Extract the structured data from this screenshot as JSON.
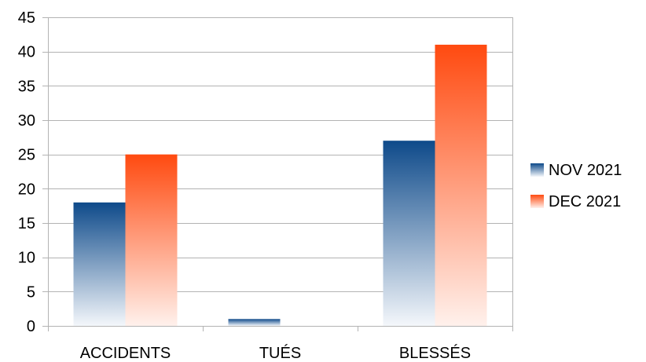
{
  "chart_data": {
    "type": "bar",
    "categories": [
      "ACCIDENTS",
      "TUÉS",
      "BLESSÉS"
    ],
    "series": [
      {
        "name": "NOV 2021",
        "values": [
          18,
          1,
          27
        ],
        "color_top": "#0e4a8a",
        "color_bottom": "#f4f7fb"
      },
      {
        "name": "DEC 2021",
        "values": [
          25,
          0,
          41
        ],
        "color_top": "#ff4a10",
        "color_bottom": "#fff1ec"
      }
    ],
    "title": "",
    "xlabel": "",
    "ylabel": "",
    "ylim": [
      0,
      45
    ],
    "yticks": [
      0,
      5,
      10,
      15,
      20,
      25,
      30,
      35,
      40,
      45
    ],
    "grid": true,
    "legend_position": "right"
  }
}
